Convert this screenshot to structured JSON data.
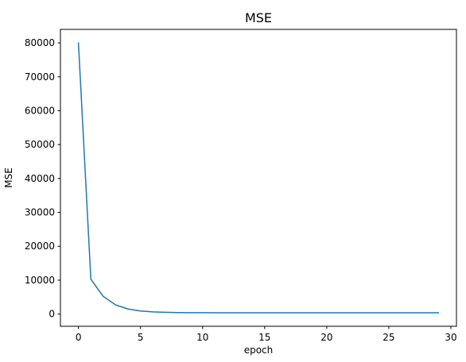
{
  "chart_data": {
    "type": "line",
    "title": "MSE",
    "xlabel": "epoch",
    "ylabel": "MSE",
    "xlim": [
      -1.45,
      30.45
    ],
    "ylim": [
      -3600,
      84000
    ],
    "x_ticks": [
      0,
      5,
      10,
      15,
      20,
      25,
      30
    ],
    "y_ticks": [
      0,
      10000,
      20000,
      30000,
      40000,
      50000,
      60000,
      70000,
      80000
    ],
    "grid": false,
    "series": [
      {
        "color": "#1f77b4",
        "x": [
          0,
          1,
          2,
          3,
          4,
          5,
          6,
          7,
          8,
          9,
          10,
          11,
          12,
          13,
          14,
          15,
          16,
          17,
          18,
          19,
          20,
          21,
          22,
          23,
          24,
          25,
          26,
          27,
          28,
          29
        ],
        "y": [
          80000,
          10300,
          5200,
          2700,
          1500,
          900,
          650,
          520,
          450,
          420,
          400,
          395,
          390,
          390,
          390,
          390,
          390,
          390,
          390,
          390,
          390,
          390,
          390,
          390,
          390,
          390,
          390,
          390,
          390,
          390
        ]
      }
    ]
  }
}
